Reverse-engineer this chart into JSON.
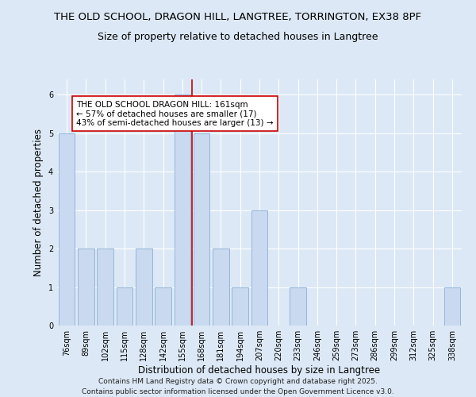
{
  "title_line1": "THE OLD SCHOOL, DRAGON HILL, LANGTREE, TORRINGTON, EX38 8PF",
  "title_line2": "Size of property relative to detached houses in Langtree",
  "xlabel": "Distribution of detached houses by size in Langtree",
  "ylabel": "Number of detached properties",
  "categories": [
    "76sqm",
    "89sqm",
    "102sqm",
    "115sqm",
    "128sqm",
    "142sqm",
    "155sqm",
    "168sqm",
    "181sqm",
    "194sqm",
    "207sqm",
    "220sqm",
    "233sqm",
    "246sqm",
    "259sqm",
    "273sqm",
    "286sqm",
    "299sqm",
    "312sqm",
    "325sqm",
    "338sqm"
  ],
  "values": [
    5,
    2,
    2,
    1,
    2,
    1,
    6,
    5,
    2,
    1,
    3,
    0,
    1,
    0,
    0,
    0,
    0,
    0,
    0,
    0,
    1
  ],
  "bar_color": "#c9d9f0",
  "bar_edge_color": "#8bafd4",
  "subject_line_color": "#cc0000",
  "annotation_text": "THE OLD SCHOOL DRAGON HILL: 161sqm\n← 57% of detached houses are smaller (17)\n43% of semi-detached houses are larger (13) →",
  "annotation_box_color": "#ffffff",
  "annotation_box_edge": "#cc0000",
  "ylim": [
    0,
    6.4
  ],
  "yticks": [
    0,
    1,
    2,
    3,
    4,
    5,
    6
  ],
  "footer_line1": "Contains HM Land Registry data © Crown copyright and database right 2025.",
  "footer_line2": "Contains public sector information licensed under the Open Government Licence v3.0.",
  "bg_color": "#dce8f5",
  "title_fontsize": 9.5,
  "subtitle_fontsize": 9,
  "tick_fontsize": 7,
  "label_fontsize": 8.5,
  "footer_fontsize": 6.5,
  "annotation_fontsize": 7.5
}
